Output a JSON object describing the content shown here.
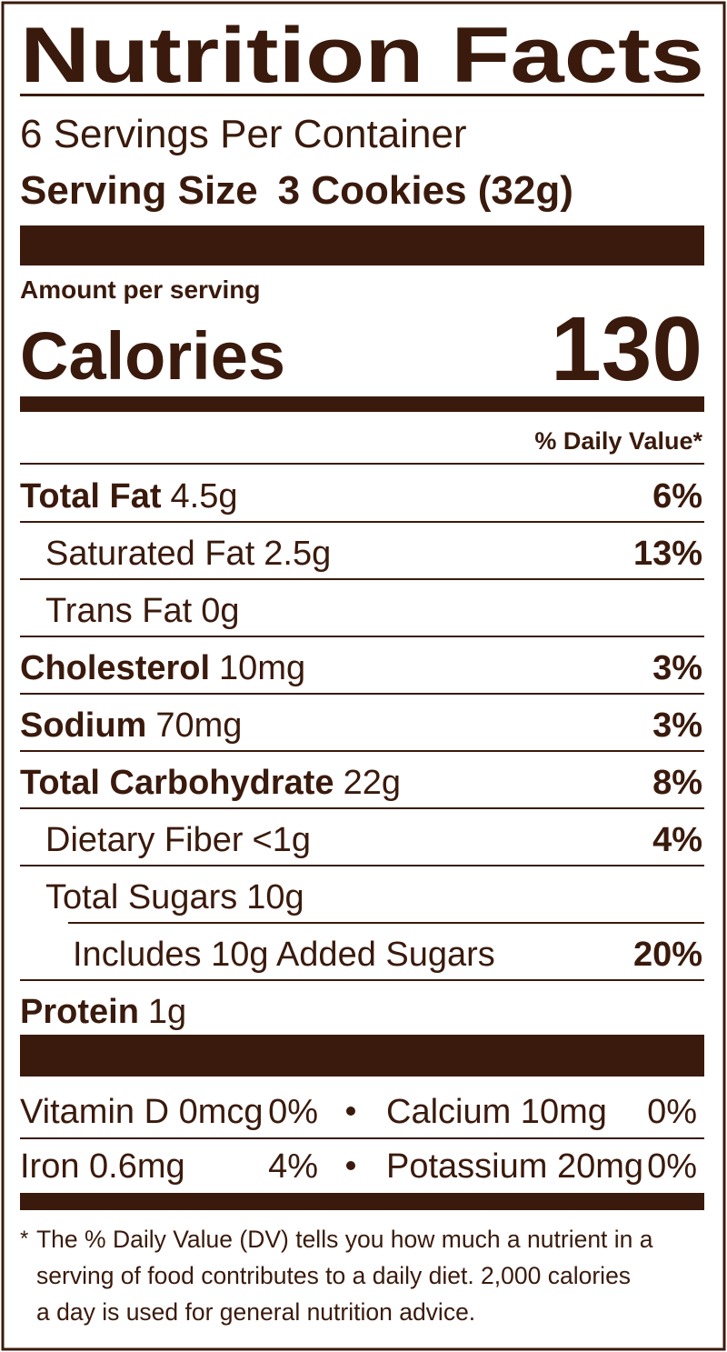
{
  "title": "Nutrition Facts",
  "servings": "6 Servings Per Container",
  "serving_size": {
    "label": "Serving Size",
    "value": "3 Cookies (32g)"
  },
  "amount_per_serving": "Amount per serving",
  "calories": {
    "label": "Calories",
    "value": "130"
  },
  "dv_header": "% Daily Value*",
  "nutrients": [
    {
      "name": "Total Fat",
      "amount": "4.5g",
      "dv": "6%"
    },
    {
      "name": "Saturated Fat",
      "amount": "2.5g",
      "dv": "13%"
    },
    {
      "name": "Trans Fat",
      "amount": "0g"
    },
    {
      "name": "Cholesterol",
      "amount": "10mg",
      "dv": "3%"
    },
    {
      "name": "Sodium",
      "amount": "70mg",
      "dv": "3%"
    },
    {
      "name": "Total Carbohydrate",
      "amount": "22g",
      "dv": "8%"
    },
    {
      "name": "Dietary Fiber",
      "amount": "<1g",
      "dv": "4%"
    },
    {
      "name": "Total Sugars",
      "amount": "10g"
    },
    {
      "name": "Includes 10g Added Sugars",
      "dv": "20%"
    },
    {
      "name": "Protein",
      "amount": "1g"
    }
  ],
  "vitamins": [
    {
      "name": "Vitamin D 0mcg",
      "dv": "0%"
    },
    {
      "name": "Calcium 10mg",
      "dv": "0%"
    },
    {
      "name": "Iron 0.6mg",
      "dv": "4%"
    },
    {
      "name": "Potassium 20mg",
      "dv": "0%"
    }
  ],
  "footnote": {
    "mark": "*",
    "lines": [
      "The % Daily Value (DV) tells you how much a nutrient in a",
      "serving of food contributes to a daily diet. 2,000 calories",
      "a day is used for general nutrition advice."
    ]
  }
}
